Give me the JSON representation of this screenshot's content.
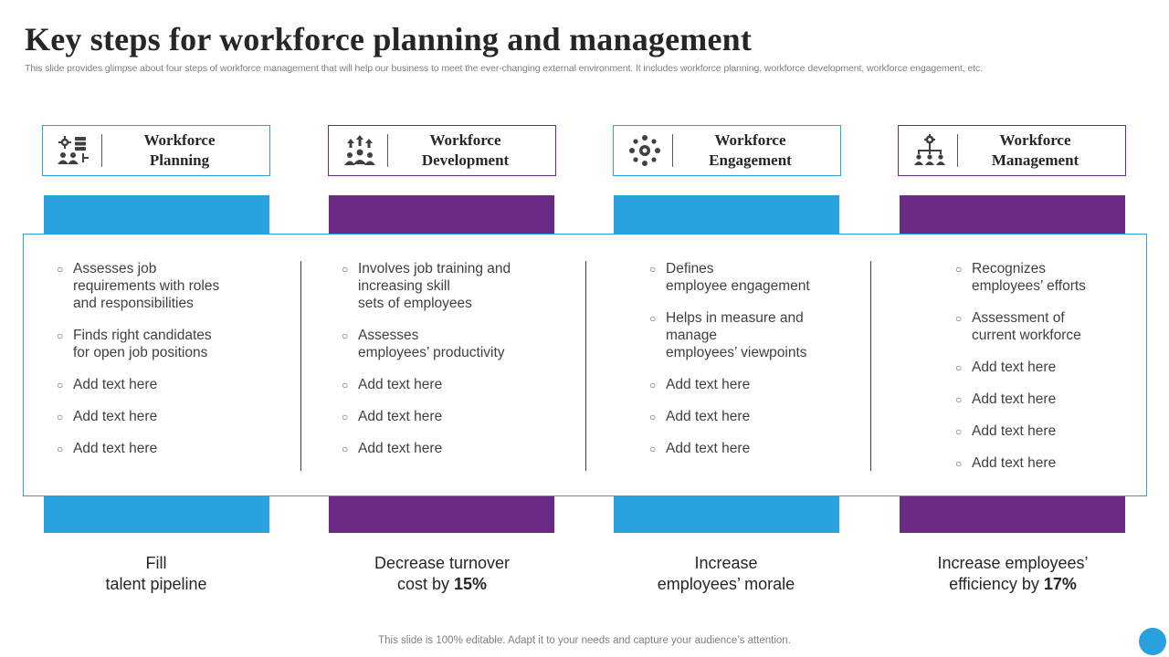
{
  "slide": {
    "title": "Key steps for workforce planning and management",
    "subtitle": "This slide provides glimpse about four steps of workforce management that will help our business to meet the ever-changing external environment. It includes workforce planning, workforce development, workforce engagement, etc.",
    "footer": "This slide is 100% editable. Adapt it to your needs and capture your audience’s attention."
  },
  "colors": {
    "blue": "#2aa1df",
    "purple": "#6b2a86"
  },
  "steps": [
    {
      "header": "Workforce\nPlanning",
      "icon": "gear-server-people-icon",
      "bullets": [
        "Assesses job\nrequirements with roles\nand responsibilities",
        "Finds right candidates\nfor open job positions",
        "Add text here",
        "Add text here",
        "Add text here"
      ],
      "outcome": {
        "text": "Fill\ntalent pipeline",
        "highlight": ""
      }
    },
    {
      "header": "Workforce\nDevelopment",
      "icon": "team-growth-arrows-icon",
      "bullets": [
        "Involves  job training and\nincreasing skill\nsets of employees",
        "Assesses\nemployees’ productivity",
        "Add text here",
        "Add text here",
        "Add text here"
      ],
      "outcome": {
        "text": "Decrease turnover\ncost by ",
        "highlight": "15%"
      }
    },
    {
      "header": "Workforce\nEngagement",
      "icon": "people-circle-network-icon",
      "bullets": [
        "Defines\nemployee engagement",
        "Helps in measure and\nmanage\nemployees’ viewpoints",
        "Add text here",
        "Add text here",
        "Add text here"
      ],
      "outcome": {
        "text": "Increase\nemployees’ morale",
        "highlight": ""
      }
    },
    {
      "header": "Workforce\nManagement",
      "icon": "org-chart-gear-icon",
      "bullets": [
        "Recognizes\nemployees’ efforts",
        "Assessment of\ncurrent workforce",
        "Add text here",
        "Add text here",
        "Add text here",
        "Add text here"
      ],
      "outcome": {
        "text": "Increase employees’\nefficiency by ",
        "highlight": "17%"
      }
    }
  ]
}
